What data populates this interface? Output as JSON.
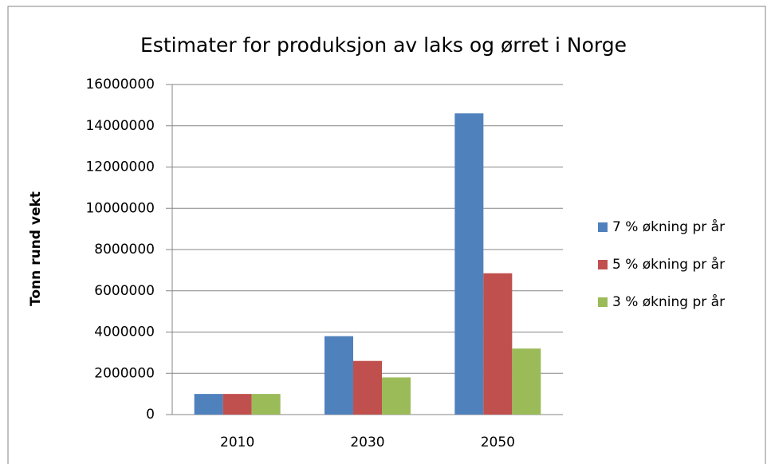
{
  "chart_data": {
    "type": "bar",
    "title": "Estimater for produksjon av laks og ørret i Norge",
    "y_label": "Tonn rund vekt",
    "categories": [
      "2010",
      "2030",
      "2050"
    ],
    "series": [
      {
        "name": "7 % økning pr år",
        "color": "#4f81bd",
        "values": [
          1000000,
          3800000,
          14600000
        ]
      },
      {
        "name": "5 % økning pr år",
        "color": "#c0504d",
        "values": [
          1000000,
          2600000,
          6850000
        ]
      },
      {
        "name": "3 % økning pr år",
        "color": "#9bbb59",
        "values": [
          1000000,
          1800000,
          3200000
        ]
      }
    ],
    "ylim": [
      0,
      16000000
    ],
    "yticks": [
      0,
      2000000,
      4000000,
      6000000,
      8000000,
      10000000,
      12000000,
      14000000,
      16000000
    ],
    "grid": true,
    "legend": "right"
  }
}
